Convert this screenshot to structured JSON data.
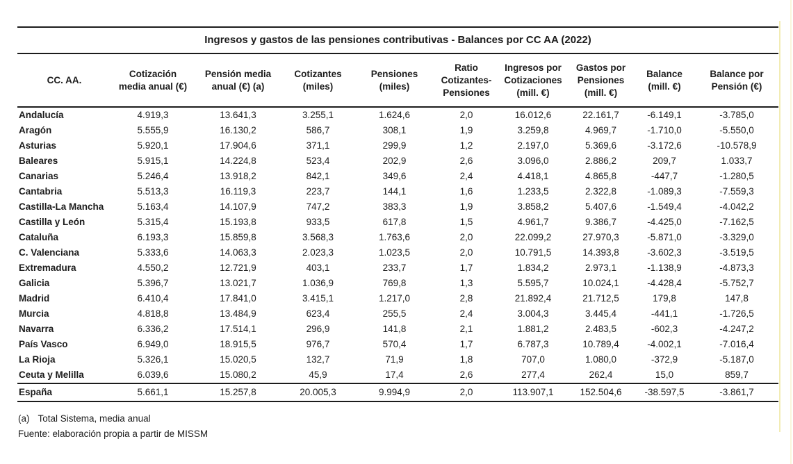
{
  "table": {
    "title": "Ingresos y gastos de las pensiones contributivas - Balances por CC AA (2022)",
    "columns": [
      "CC. AA.",
      "Cotización\nmedia anual (€)",
      "Pensión media\nanual (€) (a)",
      "Cotizantes\n(miles)",
      "Pensiones\n(miles)",
      "Ratio\nCotizantes-\nPensiones",
      "Ingresos por\nCotizaciones\n(mill. €)",
      "Gastos por\nPensiones\n(mill. €)",
      "Balance\n(mill. €)",
      "Balance por\nPensión (€)"
    ],
    "rows": [
      [
        "Andalucía",
        "4.919,3",
        "13.641,3",
        "3.255,1",
        "1.624,6",
        "2,0",
        "16.012,6",
        "22.161,7",
        "-6.149,1",
        "-3.785,0"
      ],
      [
        "Aragón",
        "5.555,9",
        "16.130,2",
        "586,7",
        "308,1",
        "1,9",
        "3.259,8",
        "4.969,7",
        "-1.710,0",
        "-5.550,0"
      ],
      [
        "Asturias",
        "5.920,1",
        "17.904,6",
        "371,1",
        "299,9",
        "1,2",
        "2.197,0",
        "5.369,6",
        "-3.172,6",
        "-10.578,9"
      ],
      [
        "Baleares",
        "5.915,1",
        "14.224,8",
        "523,4",
        "202,9",
        "2,6",
        "3.096,0",
        "2.886,2",
        "209,7",
        "1.033,7"
      ],
      [
        "Canarias",
        "5.246,4",
        "13.918,2",
        "842,1",
        "349,6",
        "2,4",
        "4.418,1",
        "4.865,8",
        "-447,7",
        "-1.280,5"
      ],
      [
        "Cantabria",
        "5.513,3",
        "16.119,3",
        "223,7",
        "144,1",
        "1,6",
        "1.233,5",
        "2.322,8",
        "-1.089,3",
        "-7.559,3"
      ],
      [
        "Castilla-La Mancha",
        "5.163,4",
        "14.107,9",
        "747,2",
        "383,3",
        "1,9",
        "3.858,2",
        "5.407,6",
        "-1.549,4",
        "-4.042,2"
      ],
      [
        "Castilla y León",
        "5.315,4",
        "15.193,8",
        "933,5",
        "617,8",
        "1,5",
        "4.961,7",
        "9.386,7",
        "-4.425,0",
        "-7.162,5"
      ],
      [
        "Cataluña",
        "6.193,3",
        "15.859,8",
        "3.568,3",
        "1.763,6",
        "2,0",
        "22.099,2",
        "27.970,3",
        "-5.871,0",
        "-3.329,0"
      ],
      [
        "C. Valenciana",
        "5.333,6",
        "14.063,3",
        "2.023,3",
        "1.023,5",
        "2,0",
        "10.791,5",
        "14.393,8",
        "-3.602,3",
        "-3.519,5"
      ],
      [
        "Extremadura",
        "4.550,2",
        "12.721,9",
        "403,1",
        "233,7",
        "1,7",
        "1.834,2",
        "2.973,1",
        "-1.138,9",
        "-4.873,3"
      ],
      [
        "Galicia",
        "5.396,7",
        "13.021,7",
        "1.036,9",
        "769,8",
        "1,3",
        "5.595,7",
        "10.024,1",
        "-4.428,4",
        "-5.752,7"
      ],
      [
        "Madrid",
        "6.410,4",
        "17.841,0",
        "3.415,1",
        "1.217,0",
        "2,8",
        "21.892,4",
        "21.712,5",
        "179,8",
        "147,8"
      ],
      [
        "Murcia",
        "4.818,8",
        "13.484,9",
        "623,4",
        "255,5",
        "2,4",
        "3.004,3",
        "3.445,4",
        "-441,1",
        "-1.726,5"
      ],
      [
        "Navarra",
        "6.336,2",
        "17.514,1",
        "296,9",
        "141,8",
        "2,1",
        "1.881,2",
        "2.483,5",
        "-602,3",
        "-4.247,2"
      ],
      [
        "País Vasco",
        "6.949,0",
        "18.915,5",
        "976,7",
        "570,4",
        "1,7",
        "6.787,3",
        "10.789,4",
        "-4.002,1",
        "-7.016,4"
      ],
      [
        "La Rioja",
        "5.326,1",
        "15.020,5",
        "132,7",
        "71,9",
        "1,8",
        "707,0",
        "1.080,0",
        "-372,9",
        "-5.187,0"
      ],
      [
        "Ceuta y Melilla",
        "6.039,6",
        "15.080,2",
        "45,9",
        "17,4",
        "2,6",
        "277,4",
        "262,4",
        "15,0",
        "859,7"
      ]
    ],
    "total_row": [
      "España",
      "5.661,1",
      "15.257,8",
      "20.005,3",
      "9.994,9",
      "2,0",
      "113.907,1",
      "152.504,6",
      "-38.597,5",
      "-3.861,7"
    ],
    "footnote_marker": "(a)",
    "footnote_text": "Total Sistema, media anual",
    "source_note": "Fuente: elaboración propia a partir de MISSM",
    "accent_guide_color": "#f2ecb4"
  }
}
